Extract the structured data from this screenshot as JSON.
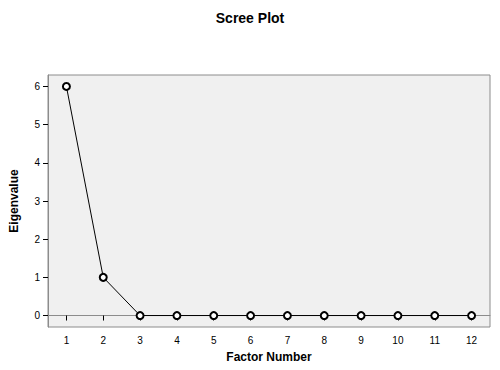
{
  "chart_data": {
    "type": "line",
    "title": "Scree Plot",
    "x_label": "Factor Number",
    "y_label": "Eigenvalue",
    "categories": [
      "1",
      "2",
      "3",
      "4",
      "5",
      "6",
      "7",
      "8",
      "9",
      "10",
      "11",
      "12"
    ],
    "values": [
      6,
      1,
      0,
      0,
      0,
      0,
      0,
      0,
      0,
      0,
      0,
      0
    ],
    "color": "#000000",
    "marker": "circle",
    "line_style": "solid",
    "ylim": [
      -0.3,
      6.3
    ],
    "yticks": [
      0,
      1,
      2,
      3,
      4,
      5,
      6
    ],
    "grid": false
  }
}
